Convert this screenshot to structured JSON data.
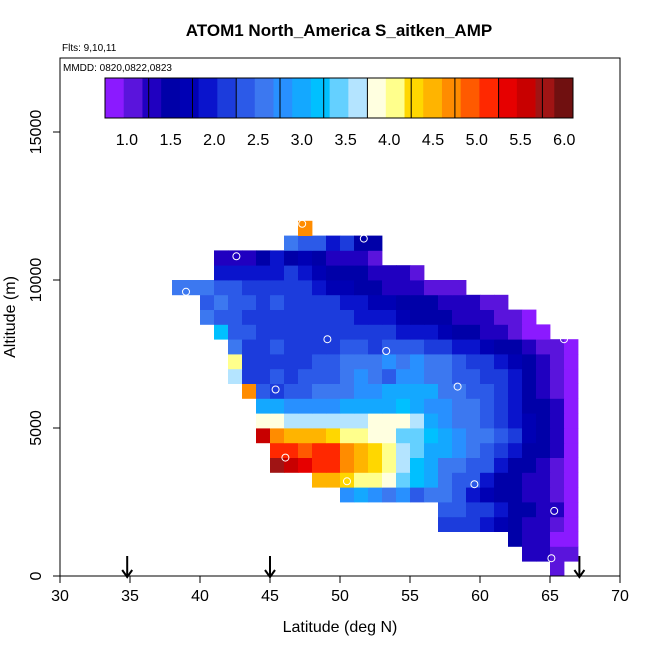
{
  "chart_data": {
    "type": "heatmap",
    "title": "ATOM1 North_America S_aitken_AMP",
    "flights_label": "Flts: 9,10,11",
    "dates_label": "MMDD: 0820,0822,0823",
    "xlabel": "Latitude (deg N)",
    "ylabel": "Altitude (m)",
    "xlim": [
      30,
      70
    ],
    "ylim": [
      0,
      17500
    ],
    "x_ticks": [
      "30",
      "35",
      "40",
      "45",
      "50",
      "55",
      "60",
      "65",
      "70"
    ],
    "y_ticks": [
      "0",
      "5000",
      "10000",
      "15000"
    ],
    "colorbar": {
      "min": 0.75,
      "max": 6.1,
      "tick_labels": [
        "1.0",
        "1.5",
        "2.0",
        "2.5",
        "3.0",
        "3.5",
        "4.0",
        "4.5",
        "5.0",
        "5.5",
        "6.0"
      ],
      "colors": [
        "#8b1aff",
        "#5a14dc",
        "#2000c0",
        "#0000a8",
        "#0000b4",
        "#0a14cc",
        "#1c3cdc",
        "#2c5ae8",
        "#3c78f0",
        "#2890ff",
        "#14a8ff",
        "#00c0ff",
        "#64d0ff",
        "#b4e4ff",
        "#ffffe0",
        "#ffff8c",
        "#ffd700",
        "#ffb400",
        "#ff8c00",
        "#ff5a00",
        "#ff2800",
        "#e60000",
        "#c80000",
        "#a01414",
        "#701010"
      ]
    },
    "cell_size": {
      "lat": 1.0,
      "alt": 500
    },
    "rows": [
      {
        "alt": 500,
        "start": 65,
        "values": [
          1.1
        ]
      },
      {
        "alt": 1000,
        "start": 63,
        "values": [
          1.3,
          1.3,
          1.1,
          1.0
        ]
      },
      {
        "alt": 1500,
        "start": 62,
        "values": [
          1.4,
          1.3,
          1.3,
          0.9,
          0.8
        ]
      },
      {
        "alt": 2000,
        "start": 57,
        "values": [
          2.1,
          2.1,
          2.2,
          2.0,
          1.7,
          1.4,
          1.3,
          1.3,
          1.1,
          0.8
        ]
      },
      {
        "alt": 2500,
        "start": 57,
        "values": [
          2.3,
          2.3,
          2.2,
          2.1,
          1.9,
          1.6,
          1.4,
          1.3,
          1.2,
          0.8
        ]
      },
      {
        "alt": 3000,
        "start": 50,
        "values": [
          2.8,
          3.0,
          2.8,
          2.6,
          2.7,
          2.4,
          2.5,
          2.5,
          2.3,
          2.0,
          1.8,
          1.6,
          1.4,
          1.3,
          1.2,
          1.1,
          0.8
        ]
      },
      {
        "alt": 3500,
        "start": 48,
        "values": [
          4.4,
          4.4,
          4.3,
          4.1,
          4.0,
          3.8,
          3.5,
          3.2,
          3.0,
          2.6,
          2.4,
          2.4,
          2.0,
          1.6,
          1.4,
          1.3,
          1.2,
          1.1,
          0.8
        ]
      },
      {
        "alt": 4000,
        "start": 45,
        "values": [
          5.8,
          5.6,
          5.4,
          5.2,
          5.1,
          4.8,
          4.5,
          4.2,
          4.0,
          3.6,
          3.2,
          3.0,
          2.6,
          2.5,
          2.4,
          2.3,
          1.9,
          1.6,
          1.4,
          1.3,
          1.1,
          0.8
        ]
      },
      {
        "alt": 4500,
        "start": 45,
        "values": [
          5.2,
          5.1,
          5.0,
          5.2,
          5.1,
          4.8,
          4.6,
          4.3,
          4.0,
          3.6,
          3.4,
          3.1,
          3.0,
          2.7,
          2.6,
          2.4,
          2.2,
          2.0,
          1.6,
          1.4,
          1.2,
          0.8
        ]
      },
      {
        "alt": 5000,
        "start": 44,
        "values": [
          5.5,
          4.7,
          4.6,
          4.6,
          4.4,
          4.2,
          4.1,
          4.0,
          3.9,
          3.8,
          3.5,
          3.4,
          3.2,
          3.1,
          2.8,
          2.6,
          2.5,
          2.4,
          2.2,
          1.8,
          1.5,
          1.3,
          0.8
        ]
      },
      {
        "alt": 5500,
        "start": 44,
        "values": [
          3.9,
          3.9,
          3.6,
          3.6,
          3.6,
          3.6,
          3.6,
          3.7,
          3.8,
          3.9,
          3.9,
          3.6,
          3.1,
          2.8,
          2.6,
          2.5,
          2.3,
          2.2,
          2.0,
          1.7,
          1.4,
          1.3,
          0.8
        ]
      },
      {
        "alt": 6000,
        "start": 44,
        "values": [
          2.9,
          2.9,
          2.7,
          2.7,
          2.8,
          2.8,
          2.9,
          3.0,
          3.0,
          3.1,
          3.2,
          3.1,
          2.8,
          2.7,
          2.6,
          2.5,
          2.4,
          2.2,
          2.0,
          1.6,
          1.4,
          1.3,
          0.8
        ]
      },
      {
        "alt": 6500,
        "start": 43,
        "values": [
          4.7,
          2.3,
          2.2,
          2.3,
          2.4,
          2.6,
          2.6,
          2.6,
          2.7,
          2.8,
          2.9,
          3.0,
          3.1,
          2.9,
          2.6,
          2.5,
          2.4,
          2.3,
          2.2,
          2.0,
          1.6,
          1.3,
          1.1,
          0.8
        ]
      },
      {
        "alt": 7000,
        "start": 42,
        "values": [
          3.6,
          2.2,
          2.2,
          2.3,
          2.2,
          2.3,
          2.3,
          2.4,
          2.6,
          2.8,
          2.6,
          2.4,
          2.7,
          2.7,
          2.5,
          2.6,
          2.4,
          2.3,
          2.2,
          2.1,
          1.9,
          1.6,
          1.3,
          1.1,
          0.8
        ]
      },
      {
        "alt": 7500,
        "start": 42,
        "values": [
          4.0,
          2.1,
          2.2,
          2.2,
          2.1,
          2.2,
          2.3,
          2.3,
          2.5,
          2.6,
          2.6,
          2.8,
          2.6,
          2.7,
          2.5,
          2.5,
          2.3,
          2.2,
          2.2,
          2.0,
          1.8,
          1.6,
          1.3,
          1.1,
          0.8
        ]
      },
      {
        "alt": 8000,
        "start": 42,
        "values": [
          2.6,
          2.2,
          2.2,
          2.3,
          2.2,
          2.1,
          2.2,
          2.2,
          2.3,
          2.3,
          2.2,
          2.3,
          2.3,
          2.3,
          2.2,
          2.1,
          2.0,
          1.9,
          1.7,
          1.6,
          1.4,
          1.3,
          1.1,
          1.1,
          0.8
        ]
      },
      {
        "alt": 8500,
        "start": 41,
        "values": [
          3.2,
          2.4,
          2.3,
          2.2,
          2.2,
          2.1,
          2.1,
          2.1,
          2.1,
          2.2,
          2.1,
          2.2,
          2.1,
          2.0,
          1.9,
          1.9,
          1.7,
          1.5,
          1.5,
          1.3,
          1.2,
          1.1,
          0.9,
          0.8
        ]
      },
      {
        "alt": 9000,
        "start": 40,
        "values": [
          2.5,
          2.4,
          2.3,
          2.2,
          2.2,
          2.2,
          2.2,
          2.1,
          2.1,
          2.1,
          2.2,
          2.0,
          1.9,
          1.9,
          1.8,
          1.6,
          1.5,
          1.4,
          1.3,
          1.2,
          1.2,
          1.1,
          1.0,
          0.9
        ]
      },
      {
        "alt": 9500,
        "start": 40,
        "values": [
          2.4,
          2.5,
          2.4,
          2.3,
          2.2,
          2.3,
          2.2,
          2.2,
          2.2,
          2.1,
          2.0,
          1.9,
          1.8,
          1.7,
          1.6,
          1.5,
          1.4,
          1.3,
          1.2,
          1.2,
          1.1,
          1.1
        ]
      },
      {
        "alt": 10000,
        "start": 38,
        "values": [
          2.5,
          2.5,
          2.5,
          2.4,
          2.4,
          2.2,
          2.1,
          2.1,
          2.1,
          2.1,
          2.0,
          1.8,
          1.7,
          1.5,
          1.4,
          1.3,
          1.2,
          1.2,
          1.1,
          1.1,
          1.0
        ]
      },
      {
        "alt": 10500,
        "start": 41,
        "values": [
          2.0,
          2.0,
          1.9,
          1.9,
          2.0,
          2.1,
          2.0,
          1.8,
          1.6,
          1.5,
          1.4,
          1.3,
          1.2,
          1.2,
          1.1
        ]
      },
      {
        "alt": 11000,
        "start": 41,
        "values": [
          1.3,
          1.3,
          1.3,
          1.6,
          2.0,
          1.6,
          1.8,
          1.6,
          1.2,
          1.2,
          1.2,
          1.1
        ]
      },
      {
        "alt": 11500,
        "start": 46,
        "values": [
          2.6,
          2.4,
          2.3,
          1.9,
          2.1,
          1.5,
          1.6
        ]
      },
      {
        "alt": 12000,
        "start": 47,
        "values": [
          4.7
        ]
      }
    ],
    "circles": [
      {
        "lat": 47.3,
        "alt": 11900
      },
      {
        "lat": 51.7,
        "alt": 11400
      },
      {
        "lat": 42.6,
        "alt": 10800
      },
      {
        "lat": 39.0,
        "alt": 9600
      },
      {
        "lat": 49.1,
        "alt": 8000
      },
      {
        "lat": 66.0,
        "alt": 8000
      },
      {
        "lat": 53.3,
        "alt": 7600
      },
      {
        "lat": 45.4,
        "alt": 6300
      },
      {
        "lat": 58.4,
        "alt": 6400
      },
      {
        "lat": 46.1,
        "alt": 4000
      },
      {
        "lat": 50.5,
        "alt": 3200
      },
      {
        "lat": 59.6,
        "alt": 3100
      },
      {
        "lat": 65.3,
        "alt": 2200
      },
      {
        "lat": 65.1,
        "alt": 600
      }
    ],
    "arrows": [
      {
        "lat": 34.8
      },
      {
        "lat": 45.0
      },
      {
        "lat": 67.1
      }
    ]
  }
}
